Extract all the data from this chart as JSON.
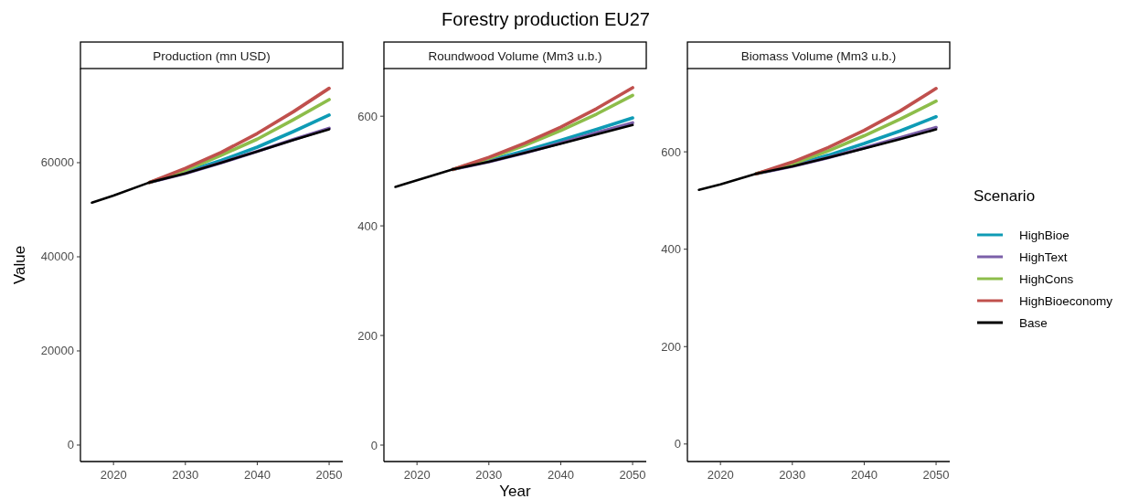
{
  "chart_data": [
    {
      "type": "line",
      "subtitle": "Production (mn USD)",
      "ylabel": "Value",
      "x": [
        2017,
        2020,
        2025,
        2030,
        2035,
        2040,
        2045,
        2050
      ],
      "xlim": [
        2015.4,
        2051.9
      ],
      "xticks": [
        2020,
        2030,
        2040,
        2050
      ],
      "ylim": [
        -3500,
        80000
      ],
      "yticks": [
        0,
        20000,
        40000,
        60000
      ],
      "grid": false,
      "series": [
        {
          "color": "#0e9bb5",
          "values": [
            null,
            null,
            55800,
            58000,
            60500,
            63300,
            66600,
            70100
          ]
        },
        {
          "color": "#7b5fa8",
          "values": [
            null,
            null,
            55800,
            57700,
            60000,
            62400,
            64900,
            67300
          ]
        },
        {
          "color": "#8dbd4a",
          "values": [
            null,
            null,
            55800,
            58400,
            61600,
            65000,
            69100,
            73400
          ]
        },
        {
          "color": "#c0504d",
          "values": [
            null,
            null,
            55800,
            58800,
            62200,
            66200,
            70800,
            75800
          ]
        },
        {
          "color": "#000000",
          "values": [
            51500,
            53000,
            55800,
            57700,
            60000,
            62400,
            64800,
            67100
          ]
        }
      ]
    },
    {
      "type": "line",
      "title": "Forestry production EU27",
      "subtitle": "Roundwood Volume (Mm3 u.b.)",
      "xlabel": "Year",
      "x": [
        2017,
        2020,
        2025,
        2030,
        2035,
        2040,
        2045,
        2050
      ],
      "xlim": [
        2015.4,
        2051.9
      ],
      "xticks": [
        2020,
        2030,
        2040,
        2050
      ],
      "ylim": [
        -30,
        687
      ],
      "yticks": [
        0,
        200,
        400,
        600
      ],
      "grid": false,
      "series": [
        {
          "color": "#0e9bb5",
          "values": [
            null,
            null,
            503,
            519,
            537,
            556,
            576,
            597
          ]
        },
        {
          "color": "#7b5fa8",
          "values": [
            null,
            null,
            503,
            517,
            533,
            551,
            570,
            588
          ]
        },
        {
          "color": "#8dbd4a",
          "values": [
            null,
            null,
            503,
            523,
            547,
            574,
            604,
            638
          ]
        },
        {
          "color": "#c0504d",
          "values": [
            null,
            null,
            503,
            525,
            551,
            580,
            614,
            652
          ]
        },
        {
          "color": "#000000",
          "values": [
            471,
            483,
            503,
            517,
            533,
            550,
            567,
            584
          ]
        }
      ]
    },
    {
      "type": "line",
      "subtitle": "Biomass Volume (Mm3 u.b.)",
      "legend_title": "Scenario",
      "legend": "right",
      "x": [
        2017,
        2020,
        2025,
        2030,
        2035,
        2040,
        2045,
        2050
      ],
      "xlim": [
        2015.4,
        2051.9
      ],
      "xticks": [
        2020,
        2030,
        2040,
        2050
      ],
      "ylim": [
        -36,
        771
      ],
      "yticks": [
        0,
        200,
        400,
        600
      ],
      "grid": false,
      "series": [
        {
          "name": "HighBioe",
          "color": "#0e9bb5",
          "values": [
            null,
            null,
            555,
            572,
            593,
            617,
            643,
            672
          ]
        },
        {
          "name": "HighText",
          "color": "#7b5fa8",
          "values": [
            null,
            null,
            555,
            570,
            588,
            608,
            629,
            650
          ]
        },
        {
          "name": "HighCons",
          "color": "#8dbd4a",
          "values": [
            null,
            null,
            555,
            575,
            602,
            633,
            667,
            704
          ]
        },
        {
          "name": "HighBioeconomy",
          "color": "#c0504d",
          "values": [
            null,
            null,
            555,
            579,
            609,
            644,
            684,
            730
          ]
        },
        {
          "name": "Base",
          "color": "#000000",
          "values": [
            522,
            533,
            555,
            570,
            588,
            607,
            626,
            646
          ]
        }
      ]
    }
  ]
}
